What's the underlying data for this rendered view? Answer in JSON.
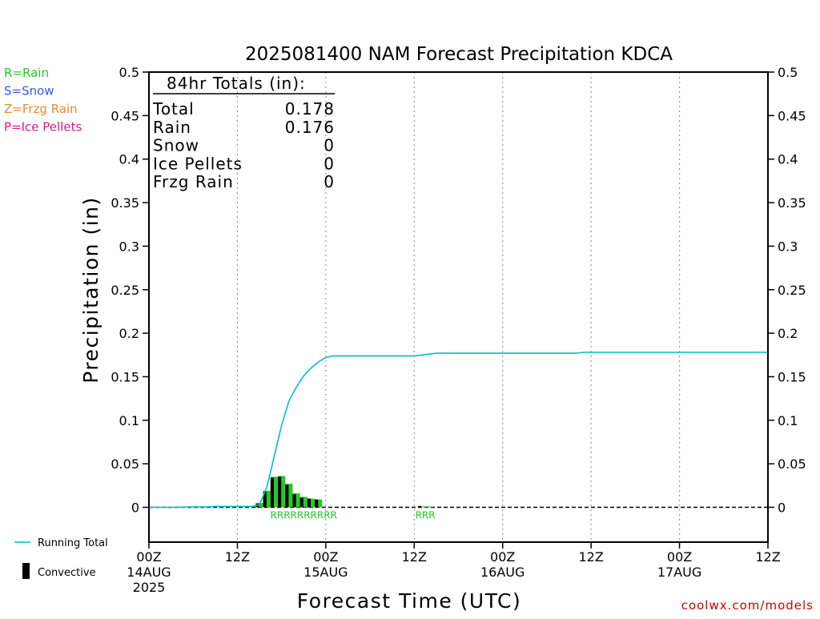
{
  "chart_data": {
    "type": "line",
    "title": "2025081400 NAM Forecast Precipitation KDCA",
    "xlabel": "Forecast Time (UTC)",
    "ylabel": "Precipitation (in)",
    "xlim": [
      0,
      84
    ],
    "ylim": [
      -0.04,
      0.5
    ],
    "y_ticks": [
      0,
      0.05,
      0.1,
      0.15,
      0.2,
      0.25,
      0.3,
      0.35,
      0.4,
      0.45,
      0.5
    ],
    "y_tick_labels": [
      "0",
      "0.05",
      "0.1",
      "0.15",
      "0.2",
      "0.25",
      "0.3",
      "0.35",
      "0.4",
      "0.45",
      "0.5"
    ],
    "x_ticks": [
      {
        "x": 0,
        "label": "00Z",
        "sub": "14AUG",
        "sub2": "2025"
      },
      {
        "x": 12,
        "label": "12Z",
        "sub": "",
        "sub2": ""
      },
      {
        "x": 24,
        "label": "00Z",
        "sub": "15AUG",
        "sub2": ""
      },
      {
        "x": 36,
        "label": "12Z",
        "sub": "",
        "sub2": ""
      },
      {
        "x": 48,
        "label": "00Z",
        "sub": "16AUG",
        "sub2": ""
      },
      {
        "x": 60,
        "label": "12Z",
        "sub": "",
        "sub2": ""
      },
      {
        "x": 72,
        "label": "00Z",
        "sub": "17AUG",
        "sub2": ""
      },
      {
        "x": 84,
        "label": "12Z",
        "sub": "",
        "sub2": ""
      }
    ],
    "grid": "vertical dotted at 12-hour intervals",
    "series": [
      {
        "name": "Running Total",
        "color": "#00c0c0",
        "x": [
          0,
          1,
          2,
          3,
          4,
          5,
          6,
          7,
          8,
          9,
          10,
          11,
          12,
          13,
          14,
          15,
          16,
          17,
          18,
          19,
          20,
          21,
          22,
          23,
          24,
          25,
          26,
          27,
          28,
          29,
          30,
          31,
          32,
          33,
          34,
          35,
          36,
          37,
          38,
          39,
          40,
          41,
          42,
          43,
          44,
          45,
          46,
          47,
          48,
          49,
          50,
          51,
          52,
          53,
          54,
          55,
          56,
          57,
          58,
          59,
          60,
          61,
          62,
          63,
          64,
          65,
          66,
          67,
          68,
          69,
          70,
          71,
          72,
          73,
          74,
          75,
          76,
          77,
          78,
          79,
          80,
          81,
          82,
          83,
          84
        ],
        "values": [
          0,
          0,
          0,
          0,
          0,
          0.0005,
          0.0005,
          0.0005,
          0.0005,
          0.001,
          0.001,
          0.001,
          0.001,
          0.001,
          0.001,
          0.003,
          0.023,
          0.058,
          0.094,
          0.122,
          0.138,
          0.151,
          0.16,
          0.167,
          0.172,
          0.174,
          0.174,
          0.174,
          0.174,
          0.174,
          0.174,
          0.174,
          0.174,
          0.174,
          0.174,
          0.174,
          0.174,
          0.175,
          0.176,
          0.177,
          0.177,
          0.177,
          0.177,
          0.177,
          0.177,
          0.177,
          0.177,
          0.177,
          0.177,
          0.177,
          0.177,
          0.177,
          0.177,
          0.177,
          0.177,
          0.177,
          0.177,
          0.177,
          0.177,
          0.178,
          0.178,
          0.178,
          0.178,
          0.178,
          0.178,
          0.178,
          0.178,
          0.178,
          0.178,
          0.178,
          0.178,
          0.178,
          0.178,
          0.178,
          0.178,
          0.178,
          0.178,
          0.178,
          0.178,
          0.178,
          0.178,
          0.178,
          0.178,
          0.178,
          0.178
        ]
      },
      {
        "name": "Convective",
        "color": "#000000",
        "type": "bar",
        "x": [
          15,
          16,
          17,
          18,
          19,
          20,
          21,
          22,
          23,
          37
        ],
        "values": [
          0.004,
          0.018,
          0.034,
          0.035,
          0.026,
          0.015,
          0.011,
          0.01,
          0.009,
          0.0015
        ]
      },
      {
        "name": "Rain",
        "color": "#22cc22",
        "type": "bar",
        "x": [
          15,
          16,
          17,
          18,
          19,
          20,
          21,
          22,
          23,
          37,
          38
        ],
        "values": [
          0.005,
          0.019,
          0.035,
          0.036,
          0.027,
          0.016,
          0.012,
          0.01,
          0.009,
          0.001,
          0.001
        ]
      }
    ],
    "ptype_strings": [
      {
        "x": 21,
        "text": "RRRRRRRRRR"
      },
      {
        "x": 37.5,
        "text": "RRR"
      }
    ],
    "totals": {
      "header": "84hr Totals (in):",
      "rows": [
        {
          "label": "Total",
          "value": "0.178"
        },
        {
          "label": "Rain",
          "value": "0.176"
        },
        {
          "label": "Snow",
          "value": "0"
        },
        {
          "label": "Ice Pellets",
          "value": "0"
        },
        {
          "label": "Frzg Rain",
          "value": "0"
        }
      ]
    },
    "ptype_legend": [
      {
        "text": "R=Rain",
        "color": "#22cc22"
      },
      {
        "text": "S=Snow",
        "color": "#3355ee"
      },
      {
        "text": "Z=Frzg Rain",
        "color": "#ee8833"
      },
      {
        "text": "P=Ice Pellets",
        "color": "#ee1188"
      }
    ],
    "legend": {
      "running_total": "Running Total",
      "convective": "Convective"
    },
    "credit": "coolwx.com/models"
  }
}
